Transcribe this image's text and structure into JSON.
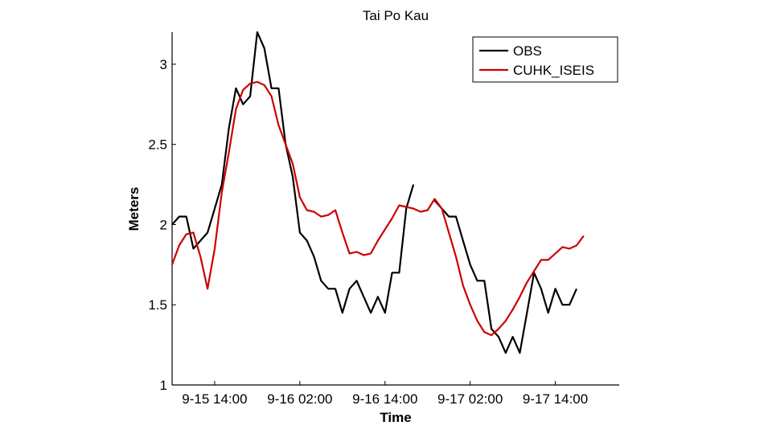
{
  "chart_data": {
    "type": "line",
    "title": "Tai Po Kau",
    "xlabel": "Time",
    "ylabel": "Meters",
    "xlim": [
      "2016-09-15 08:00",
      "2016-09-17 23:00"
    ],
    "ylim": [
      1,
      3.2
    ],
    "xticks": [
      {
        "x": "2016-09-15 14:00",
        "label": "9-15 14:00"
      },
      {
        "x": "2016-09-16 02:00",
        "label": "9-16 02:00"
      },
      {
        "x": "2016-09-16 14:00",
        "label": "9-16 14:00"
      },
      {
        "x": "2016-09-17 02:00",
        "label": "9-17 02:00"
      },
      {
        "x": "2016-09-17 14:00",
        "label": "9-17 14:00"
      }
    ],
    "yticks": [
      {
        "y": 1,
        "label": "1"
      },
      {
        "y": 1.5,
        "label": "1.5"
      },
      {
        "y": 2,
        "label": "2"
      },
      {
        "y": 2.5,
        "label": "2.5"
      },
      {
        "y": 3,
        "label": "3"
      }
    ],
    "legend_position": "top-right",
    "grid": false,
    "series": [
      {
        "name": "OBS",
        "color": "#000000",
        "segments": [
          [
            [
              "2016-09-15 08:00",
              2.0
            ],
            [
              "2016-09-15 09:00",
              2.05
            ],
            [
              "2016-09-15 10:00",
              2.05
            ],
            [
              "2016-09-15 11:00",
              1.85
            ],
            [
              "2016-09-15 12:00",
              1.9
            ],
            [
              "2016-09-15 13:00",
              1.95
            ],
            [
              "2016-09-15 14:00",
              2.1
            ],
            [
              "2016-09-15 15:00",
              2.25
            ],
            [
              "2016-09-15 16:00",
              2.6
            ],
            [
              "2016-09-15 17:00",
              2.85
            ],
            [
              "2016-09-15 18:00",
              2.75
            ],
            [
              "2016-09-15 19:00",
              2.8
            ],
            [
              "2016-09-15 20:00",
              3.2
            ],
            [
              "2016-09-15 21:00",
              3.1
            ],
            [
              "2016-09-15 22:00",
              2.85
            ],
            [
              "2016-09-15 23:00",
              2.85
            ],
            [
              "2016-09-16 00:00",
              2.5
            ],
            [
              "2016-09-16 01:00",
              2.3
            ],
            [
              "2016-09-16 02:00",
              1.95
            ],
            [
              "2016-09-16 03:00",
              1.9
            ],
            [
              "2016-09-16 04:00",
              1.8
            ],
            [
              "2016-09-16 05:00",
              1.65
            ],
            [
              "2016-09-16 06:00",
              1.6
            ],
            [
              "2016-09-16 07:00",
              1.6
            ],
            [
              "2016-09-16 08:00",
              1.45
            ],
            [
              "2016-09-16 09:00",
              1.6
            ],
            [
              "2016-09-16 10:00",
              1.65
            ],
            [
              "2016-09-16 11:00",
              1.55
            ],
            [
              "2016-09-16 12:00",
              1.45
            ],
            [
              "2016-09-16 13:00",
              1.55
            ],
            [
              "2016-09-16 14:00",
              1.45
            ],
            [
              "2016-09-16 15:00",
              1.7
            ],
            [
              "2016-09-16 16:00",
              1.7
            ],
            [
              "2016-09-16 17:00",
              2.1
            ],
            [
              "2016-09-16 18:00",
              2.25
            ]
          ],
          [
            [
              "2016-09-16 21:00",
              2.15
            ],
            [
              "2016-09-16 22:00",
              2.1
            ],
            [
              "2016-09-16 23:00",
              2.05
            ],
            [
              "2016-09-17 00:00",
              2.05
            ],
            [
              "2016-09-17 01:00",
              1.9
            ],
            [
              "2016-09-17 02:00",
              1.75
            ],
            [
              "2016-09-17 03:00",
              1.65
            ],
            [
              "2016-09-17 04:00",
              1.65
            ],
            [
              "2016-09-17 05:00",
              1.35
            ],
            [
              "2016-09-17 06:00",
              1.3
            ],
            [
              "2016-09-17 07:00",
              1.2
            ],
            [
              "2016-09-17 08:00",
              1.3
            ],
            [
              "2016-09-17 09:00",
              1.2
            ],
            [
              "2016-09-17 10:00",
              1.45
            ],
            [
              "2016-09-17 11:00",
              1.7
            ],
            [
              "2016-09-17 12:00",
              1.6
            ],
            [
              "2016-09-17 13:00",
              1.45
            ],
            [
              "2016-09-17 14:00",
              1.6
            ],
            [
              "2016-09-17 15:00",
              1.5
            ],
            [
              "2016-09-17 16:00",
              1.5
            ],
            [
              "2016-09-17 17:00",
              1.6
            ]
          ]
        ]
      },
      {
        "name": "CUHK_ISEIS",
        "color": "#cc0000",
        "segments": [
          [
            [
              "2016-09-15 08:00",
              1.75
            ],
            [
              "2016-09-15 09:00",
              1.87
            ],
            [
              "2016-09-15 10:00",
              1.94
            ],
            [
              "2016-09-15 11:00",
              1.95
            ],
            [
              "2016-09-15 12:00",
              1.8
            ],
            [
              "2016-09-15 13:00",
              1.6
            ],
            [
              "2016-09-15 14:00",
              1.85
            ],
            [
              "2016-09-15 15:00",
              2.2
            ],
            [
              "2016-09-15 16:00",
              2.45
            ],
            [
              "2016-09-15 17:00",
              2.72
            ],
            [
              "2016-09-15 18:00",
              2.84
            ],
            [
              "2016-09-15 19:00",
              2.88
            ],
            [
              "2016-09-15 20:00",
              2.89
            ],
            [
              "2016-09-15 21:00",
              2.87
            ],
            [
              "2016-09-15 22:00",
              2.8
            ],
            [
              "2016-09-15 23:00",
              2.62
            ],
            [
              "2016-09-16 00:00",
              2.5
            ],
            [
              "2016-09-16 01:00",
              2.38
            ],
            [
              "2016-09-16 02:00",
              2.17
            ],
            [
              "2016-09-16 03:00",
              2.09
            ],
            [
              "2016-09-16 04:00",
              2.08
            ],
            [
              "2016-09-16 05:00",
              2.05
            ],
            [
              "2016-09-16 06:00",
              2.06
            ],
            [
              "2016-09-16 07:00",
              2.09
            ],
            [
              "2016-09-16 08:00",
              1.95
            ],
            [
              "2016-09-16 09:00",
              1.82
            ],
            [
              "2016-09-16 10:00",
              1.83
            ],
            [
              "2016-09-16 11:00",
              1.81
            ],
            [
              "2016-09-16 12:00",
              1.82
            ],
            [
              "2016-09-16 13:00",
              1.9
            ],
            [
              "2016-09-16 14:00",
              1.97
            ],
            [
              "2016-09-16 15:00",
              2.04
            ],
            [
              "2016-09-16 16:00",
              2.12
            ],
            [
              "2016-09-16 17:00",
              2.11
            ],
            [
              "2016-09-16 18:00",
              2.1
            ],
            [
              "2016-09-16 19:00",
              2.08
            ],
            [
              "2016-09-16 20:00",
              2.09
            ],
            [
              "2016-09-16 21:00",
              2.16
            ],
            [
              "2016-09-16 22:00",
              2.1
            ],
            [
              "2016-09-16 23:00",
              1.95
            ],
            [
              "2016-09-17 00:00",
              1.8
            ],
            [
              "2016-09-17 01:00",
              1.62
            ],
            [
              "2016-09-17 02:00",
              1.5
            ],
            [
              "2016-09-17 03:00",
              1.4
            ],
            [
              "2016-09-17 04:00",
              1.33
            ],
            [
              "2016-09-17 05:00",
              1.31
            ],
            [
              "2016-09-17 06:00",
              1.35
            ],
            [
              "2016-09-17 07:00",
              1.4
            ],
            [
              "2016-09-17 08:00",
              1.47
            ],
            [
              "2016-09-17 09:00",
              1.55
            ],
            [
              "2016-09-17 10:00",
              1.64
            ],
            [
              "2016-09-17 11:00",
              1.71
            ],
            [
              "2016-09-17 12:00",
              1.78
            ],
            [
              "2016-09-17 13:00",
              1.78
            ],
            [
              "2016-09-17 14:00",
              1.82
            ],
            [
              "2016-09-17 15:00",
              1.86
            ],
            [
              "2016-09-17 16:00",
              1.85
            ],
            [
              "2016-09-17 17:00",
              1.87
            ],
            [
              "2016-09-17 18:00",
              1.93
            ]
          ]
        ]
      }
    ]
  }
}
